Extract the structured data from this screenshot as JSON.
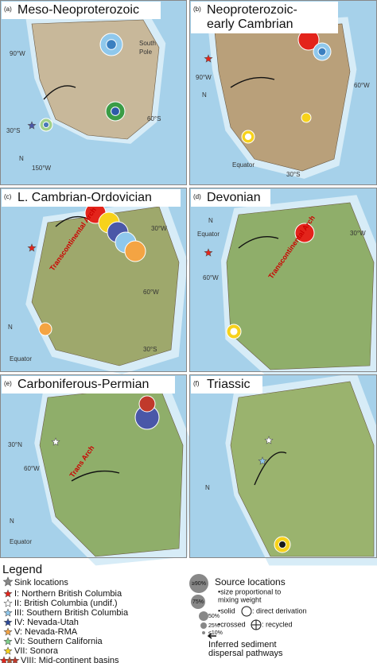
{
  "panels": [
    {
      "label": "(a)",
      "title": [
        "Meso-Neoproterozoic"
      ],
      "annotations": [
        "South",
        "Pole",
        "90°W",
        "30°S",
        "60°S",
        "150°W",
        "N"
      ]
    },
    {
      "label": "(b)",
      "title": [
        "Neoproterozoic-",
        "early Cambrian"
      ],
      "annotations": [
        "90°W",
        "60°W",
        "30°S",
        "Equator",
        "N"
      ]
    },
    {
      "label": "(c)",
      "title": [
        "L. Cambrian-Ordovician"
      ],
      "annotations": [
        "30°W",
        "60°W",
        "30°S",
        "Transcontinental Arch",
        "Equator",
        "N"
      ]
    },
    {
      "label": "(d)",
      "title": [
        "Devonian"
      ],
      "annotations": [
        "30°W",
        "60°W",
        "Transcontinental Arch",
        "Equator",
        "N"
      ]
    },
    {
      "label": "(e)",
      "title": [
        "Carboniferous-Permian"
      ],
      "annotations": [
        "30°N",
        "60°W",
        "Trans Arch",
        "Equator",
        "N"
      ]
    },
    {
      "label": "(f)",
      "title": [
        "Triassic"
      ],
      "annotations": [
        "N"
      ]
    }
  ],
  "legend": {
    "title": "Legend",
    "sink_title": "Sink locations",
    "sinks": [
      "I: Northern British Columbia",
      "II: British Columbia (undif.)",
      "III: Southern British Columbia",
      "IV: Nevada-Utah",
      "V: Nevada-RMA",
      "VI: Southern California",
      "VII: Sonora",
      "VIII: Mid-continent basins"
    ],
    "source_title": "Source locations",
    "size_note": [
      "•size proportional to",
      "mixing weight"
    ],
    "sizes": [
      "≥90%",
      "75%",
      "50%",
      "25%",
      "≤10%"
    ],
    "solid": "•solid",
    "solid_note": ": direct derivation",
    "crossed": "•crossed",
    "crossed_note": ": recycled",
    "pathways": [
      "Inferred sediment",
      "dispersal pathways"
    ]
  }
}
